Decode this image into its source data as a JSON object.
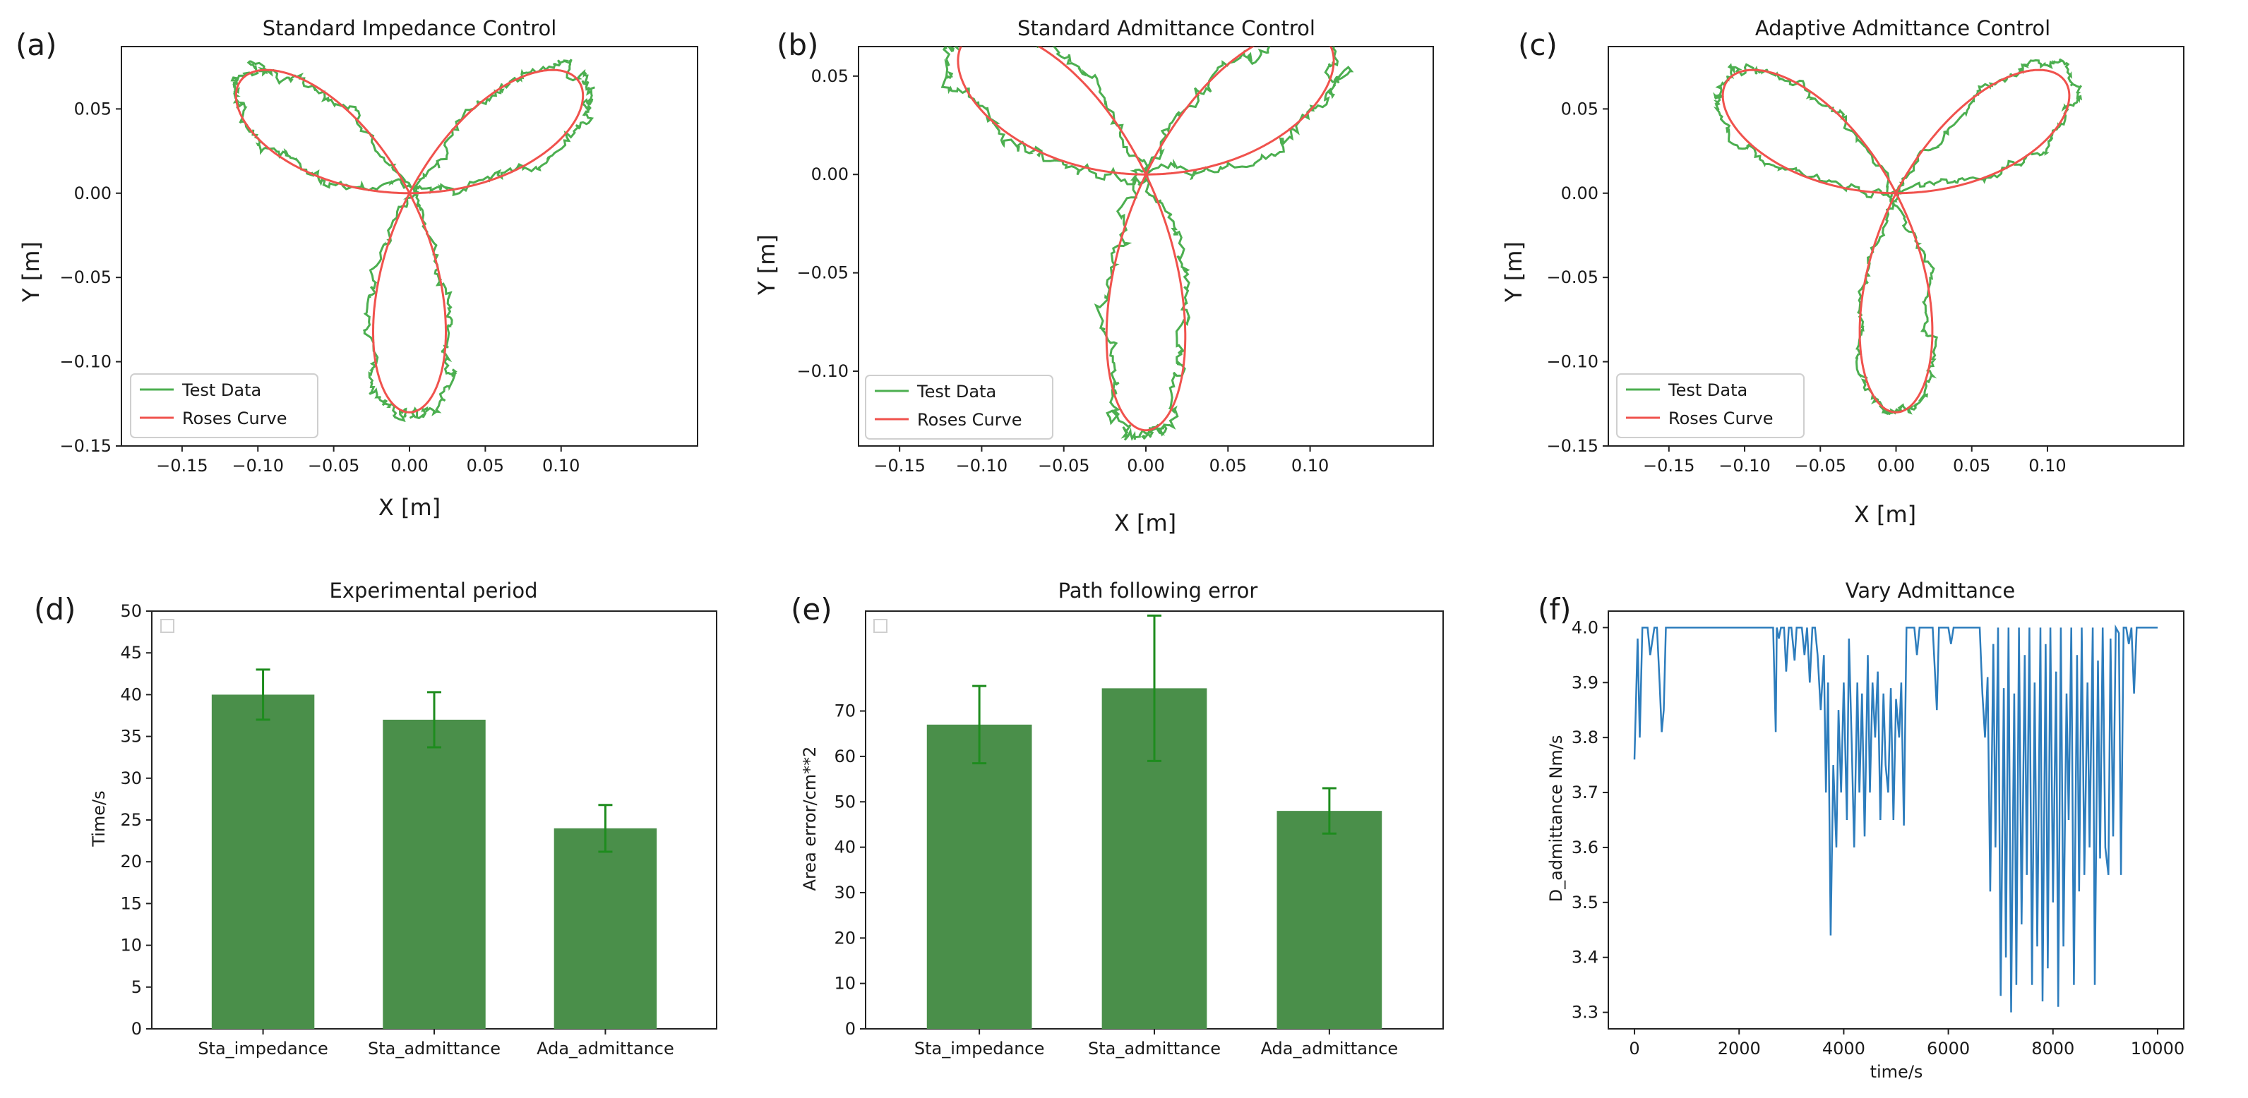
{
  "colors": {
    "test_data": "#4caf50",
    "roses_curve": "#f0524d",
    "bar": "#4a8f4a",
    "errbar": "#1e8c1e",
    "line": "#2d7dbd"
  },
  "panels": {
    "a": {
      "label": "(a)"
    },
    "b": {
      "label": "(b)"
    },
    "c": {
      "label": "(c)"
    },
    "d": {
      "label": "(d)"
    },
    "e": {
      "label": "(e)"
    },
    "f": {
      "label": "(f)"
    }
  },
  "chart_data": [
    {
      "id": "a",
      "type": "line",
      "title": "Standard Impedance Control",
      "xlabel": "X [m]",
      "ylabel": "Y [m]",
      "xlim": [
        -0.19,
        0.19
      ],
      "ylim": [
        -0.15,
        0.087
      ],
      "xticks": [
        "-0.15",
        "-0.10",
        "-0.05",
        "0.00",
        "0.05",
        "0.10"
      ],
      "yticks": [
        "0.05",
        "0.00",
        "-0.05",
        "-0.10",
        "-0.15"
      ],
      "rose": {
        "a": 0.13,
        "k": 3,
        "rotation_deg": -90
      },
      "noise": {
        "amp": 0.008,
        "seed": 1
      },
      "legend": [
        "Test Data",
        "Roses Curve"
      ]
    },
    {
      "id": "b",
      "type": "line",
      "title": "Standard Admittance Control",
      "xlabel": "X [m]",
      "ylabel": "Y [m]",
      "xlim": [
        -0.175,
        0.175
      ],
      "ylim": [
        -0.138,
        0.065
      ],
      "xticks": [
        "-0.15",
        "-0.10",
        "-0.05",
        "0.00",
        "0.05",
        "0.10"
      ],
      "yticks": [
        "0.05",
        "0.00",
        "-0.05",
        "-0.10"
      ],
      "rose": {
        "a": 0.13,
        "k": 3,
        "rotation_deg": -90
      },
      "noise": {
        "amp": 0.009,
        "seed": 2
      },
      "legend": [
        "Test Data",
        "Roses Curve"
      ]
    },
    {
      "id": "c",
      "type": "line",
      "title": "Adaptive Admittance Control",
      "xlabel": "X [m]",
      "ylabel": "Y [m]",
      "xlim": [
        -0.19,
        0.19
      ],
      "ylim": [
        -0.15,
        0.087
      ],
      "xticks": [
        "-0.15",
        "-0.10",
        "-0.05",
        "0.00",
        "0.05",
        "0.10"
      ],
      "yticks": [
        "0.05",
        "0.00",
        "-0.05",
        "-0.10",
        "-0.15"
      ],
      "rose": {
        "a": 0.13,
        "k": 3,
        "rotation_deg": -90
      },
      "noise": {
        "amp": 0.006,
        "seed": 3
      },
      "legend": [
        "Test Data",
        "Roses Curve"
      ]
    },
    {
      "id": "d",
      "type": "bar",
      "title": "Experimental period",
      "xlabel": "",
      "ylabel": "Time/s",
      "categories": [
        "Sta_impedance",
        "Sta_admittance",
        "Ada_admittance"
      ],
      "values": [
        40,
        37,
        24
      ],
      "errors": [
        3,
        3.3,
        2.8
      ],
      "ylim": [
        0,
        50
      ],
      "yticks": [
        "0",
        "5",
        "10",
        "15",
        "20",
        "25",
        "30",
        "35",
        "40",
        "45",
        "50"
      ]
    },
    {
      "id": "e",
      "type": "bar",
      "title": "Path following error",
      "xlabel": "",
      "ylabel": "Area error/cm**2",
      "categories": [
        "Sta_impedance",
        "Sta_admittance",
        "Ada_admittance"
      ],
      "values": [
        67,
        75,
        48
      ],
      "errors": [
        8.5,
        16,
        5
      ],
      "ylim": [
        0,
        92
      ],
      "yticks": [
        "0",
        "10",
        "20",
        "30",
        "40",
        "50",
        "60",
        "70"
      ]
    },
    {
      "id": "f",
      "type": "line",
      "title": "Vary Admittance",
      "xlabel": "time/s",
      "ylabel": "D_admittance Nm/s",
      "xlim": [
        -500,
        10500
      ],
      "ylim": [
        3.27,
        4.03
      ],
      "xticks": [
        "0",
        "2000",
        "4000",
        "6000",
        "8000",
        "10000"
      ],
      "yticks": [
        "3.3",
        "3.4",
        "3.5",
        "3.6",
        "3.7",
        "3.8",
        "3.9",
        "4.0"
      ],
      "series": [
        {
          "name": "D_admittance",
          "x": [
            0,
            60,
            100,
            150,
            200,
            250,
            300,
            380,
            430,
            480,
            520,
            560,
            600,
            680,
            720,
            760,
            800,
            900,
            1200,
            1600,
            2000,
            2400,
            2650,
            2700,
            2720,
            2760,
            2800,
            2860,
            2900,
            2950,
            3000,
            3060,
            3100,
            3150,
            3200,
            3250,
            3300,
            3350,
            3400,
            3450,
            3500,
            3560,
            3620,
            3660,
            3700,
            3750,
            3800,
            3860,
            3900,
            3950,
            4000,
            4060,
            4100,
            4150,
            4200,
            4260,
            4300,
            4350,
            4400,
            4460,
            4500,
            4550,
            4600,
            4650,
            4700,
            4760,
            4800,
            4850,
            4900,
            4950,
            5000,
            5060,
            5100,
            5150,
            5200,
            5250,
            5300,
            5350,
            5400,
            5450,
            5500,
            5700,
            5780,
            5820,
            5900,
            6000,
            6050,
            6100,
            6400,
            6600,
            6650,
            6700,
            6750,
            6800,
            6860,
            6900,
            6950,
            7000,
            7060,
            7100,
            7150,
            7200,
            7260,
            7300,
            7350,
            7400,
            7460,
            7500,
            7550,
            7600,
            7650,
            7700,
            7760,
            7800,
            7860,
            7900,
            7950,
            8000,
            8060,
            8100,
            8150,
            8200,
            8260,
            8300,
            8350,
            8400,
            8460,
            8500,
            8550,
            8600,
            8660,
            8700,
            8760,
            8800,
            8860,
            8900,
            8950,
            9000,
            9060,
            9100,
            9150,
            9200,
            9260,
            9300,
            9350,
            9400,
            9450,
            9500,
            9550,
            9600,
            9700,
            9800,
            10000
          ],
          "y": [
            3.76,
            3.98,
            3.8,
            4.0,
            4.0,
            4.0,
            3.95,
            4.0,
            4.0,
            3.9,
            3.81,
            3.85,
            4.0,
            4.0,
            4.0,
            4.0,
            4.0,
            4.0,
            4.0,
            4.0,
            4.0,
            4.0,
            4.0,
            3.81,
            4.0,
            3.98,
            4.0,
            4.0,
            3.92,
            4.0,
            4.0,
            3.94,
            4.0,
            4.0,
            4.0,
            3.95,
            4.0,
            3.9,
            4.0,
            4.0,
            3.95,
            3.85,
            3.95,
            3.7,
            3.9,
            3.44,
            3.75,
            3.6,
            3.85,
            3.7,
            3.9,
            3.65,
            3.98,
            3.8,
            3.6,
            3.9,
            3.7,
            3.88,
            3.62,
            3.95,
            3.7,
            3.9,
            3.8,
            3.92,
            3.65,
            3.88,
            3.75,
            3.7,
            3.89,
            3.65,
            3.87,
            3.8,
            3.9,
            3.64,
            4.0,
            4.0,
            4.0,
            4.0,
            3.95,
            4.0,
            4.0,
            4.0,
            3.85,
            4.0,
            4.0,
            4.0,
            3.97,
            4.0,
            4.0,
            4.0,
            3.88,
            3.8,
            3.91,
            3.52,
            3.97,
            3.6,
            4.0,
            3.33,
            3.89,
            3.4,
            4.0,
            3.3,
            3.88,
            3.35,
            4.0,
            3.46,
            3.95,
            3.55,
            4.0,
            3.35,
            3.9,
            3.42,
            4.0,
            3.32,
            3.97,
            3.38,
            4.0,
            3.5,
            3.92,
            3.31,
            4.0,
            3.42,
            3.88,
            3.65,
            4.0,
            3.35,
            3.95,
            3.52,
            4.0,
            3.55,
            3.9,
            3.6,
            4.0,
            3.35,
            3.94,
            3.58,
            4.0,
            3.6,
            3.55,
            3.98,
            3.62,
            4.0,
            3.99,
            3.55,
            4.0,
            4.0,
            3.97,
            4.0,
            3.88,
            4.0,
            4.0,
            4.0,
            4.0
          ]
        }
      ]
    }
  ]
}
